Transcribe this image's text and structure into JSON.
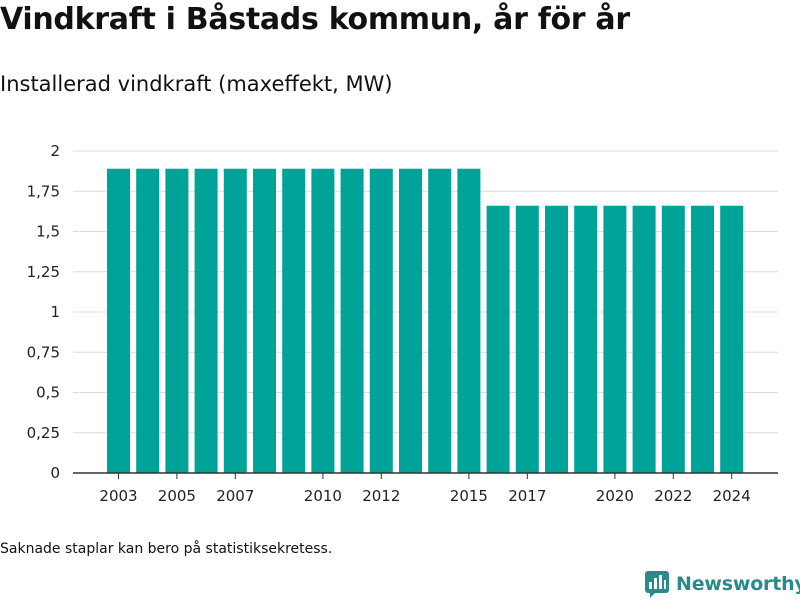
{
  "title": "Vindkraft i Båstads kommun, år för år",
  "subtitle": "Installerad vindkraft (maxeffekt, MW)",
  "footnote": "Saknade staplar kan bero på statistiksekretess.",
  "brand": {
    "name": "Newsworthy",
    "icon": "newsworthy-logo-icon",
    "color": "#2a8a8a"
  },
  "chart_data": {
    "type": "bar",
    "title": "",
    "xlabel": "",
    "ylabel": "",
    "categories": [
      2003,
      2004,
      2005,
      2006,
      2007,
      2008,
      2009,
      2010,
      2011,
      2012,
      2013,
      2014,
      2015,
      2016,
      2017,
      2018,
      2019,
      2020,
      2021,
      2022,
      2023,
      2024
    ],
    "values": [
      1.89,
      1.89,
      1.89,
      1.89,
      1.89,
      1.89,
      1.89,
      1.89,
      1.89,
      1.89,
      1.89,
      1.89,
      1.89,
      1.66,
      1.66,
      1.66,
      1.66,
      1.66,
      1.66,
      1.66,
      1.66,
      1.66
    ],
    "ylim": [
      0,
      2
    ],
    "yticks": [
      0,
      0.25,
      0.5,
      0.75,
      1,
      1.25,
      1.5,
      1.75,
      2
    ],
    "ytick_labels": [
      "0",
      "0,25",
      "0,5",
      "0,75",
      "1",
      "1,25",
      "1,5",
      "1,75",
      "2"
    ],
    "xtick_labels": [
      "2003",
      "2005",
      "2007",
      "2010",
      "2012",
      "2015",
      "2017",
      "2020",
      "2022",
      "2024"
    ],
    "bar_color": "#00a398",
    "grid": true
  }
}
